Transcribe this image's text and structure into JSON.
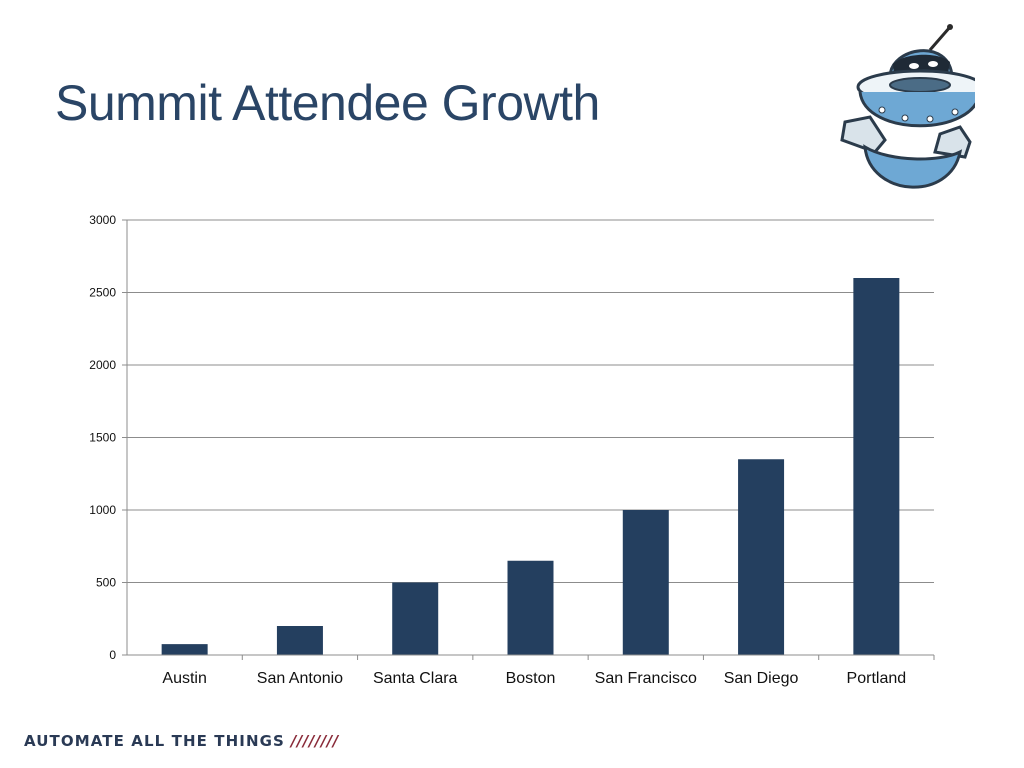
{
  "slide": {
    "title": "Summit Attendee Growth",
    "footer_brand": "AUTOMATE ALL THE THINGS",
    "footer_slashes": "////////"
  },
  "mascot": {
    "icon": "robot-mascot-icon"
  },
  "colors": {
    "title": "#2a4566",
    "bar": "#243f5f",
    "grid": "#8c8c8c",
    "footer_text": "#2a3a55",
    "footer_slashes": "#8a2c3a",
    "mascot_body": "#6ea8d4"
  },
  "chart_data": {
    "type": "bar",
    "title": "",
    "xlabel": "",
    "ylabel": "",
    "categories": [
      "Austin",
      "San Antonio",
      "Santa Clara",
      "Boston",
      "San Francisco",
      "San Diego",
      "Portland"
    ],
    "values": [
      75,
      200,
      500,
      650,
      1000,
      1350,
      2600
    ],
    "ylim": [
      0,
      3000
    ],
    "yticks": [
      0,
      500,
      1000,
      1500,
      2000,
      2500,
      3000
    ],
    "grid": true,
    "legend": "none"
  }
}
